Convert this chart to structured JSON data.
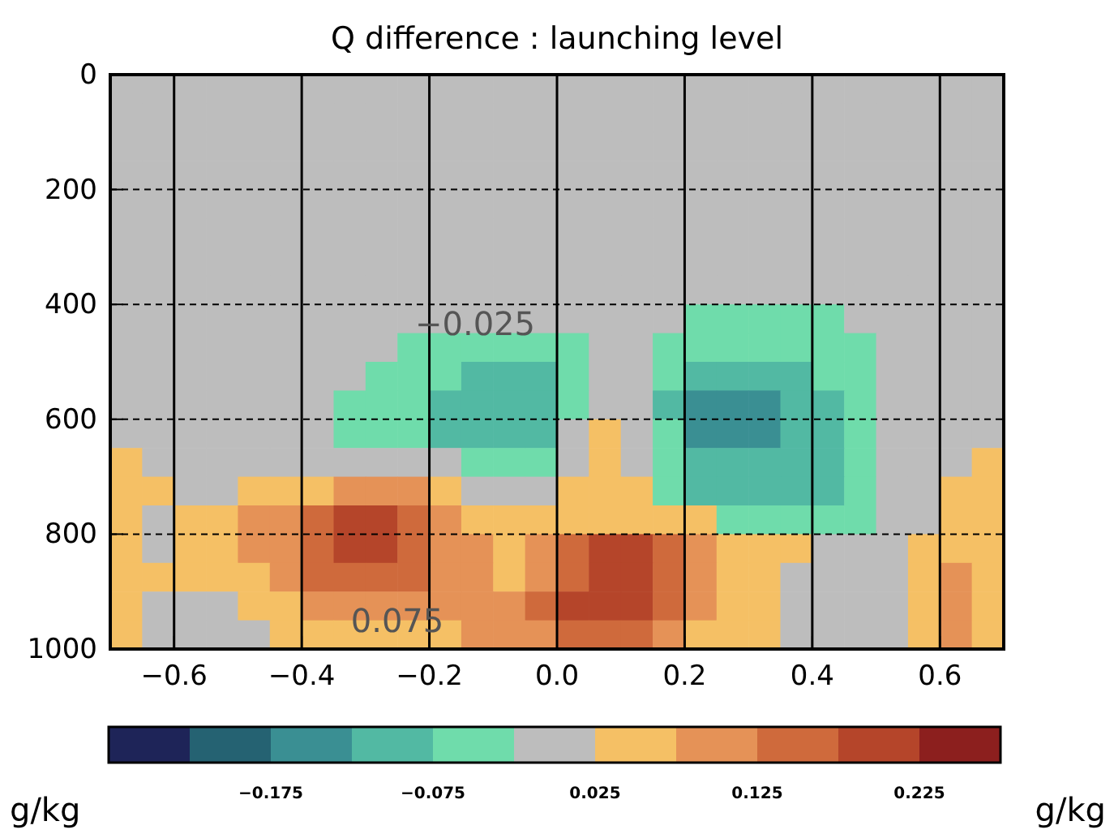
{
  "chart_data": {
    "type": "heatmap",
    "title": "Q difference : launching level",
    "clabel": "g/kg",
    "x": [
      -0.675,
      -0.625,
      -0.575,
      -0.525,
      -0.475,
      -0.425,
      -0.375,
      -0.325,
      -0.275,
      -0.225,
      -0.175,
      -0.125,
      -0.075,
      -0.025,
      0.025,
      0.075,
      0.125,
      0.175,
      0.225,
      0.275,
      0.325,
      0.375,
      0.425,
      0.475,
      0.525,
      0.575,
      0.625,
      0.675
    ],
    "y": [
      25,
      75,
      125,
      175,
      225,
      275,
      325,
      375,
      425,
      475,
      525,
      575,
      625,
      675,
      725,
      775,
      825,
      875,
      925,
      975
    ],
    "xlim": [
      -0.7,
      0.7
    ],
    "xticks": [
      {
        "value": -0.6,
        "label": "−0.6"
      },
      {
        "value": -0.4,
        "label": "−0.4"
      },
      {
        "value": -0.2,
        "label": "−0.2"
      },
      {
        "value": 0,
        "label": "0.0"
      },
      {
        "value": 0.2,
        "label": "0.2"
      },
      {
        "value": 0.4,
        "label": "0.4"
      },
      {
        "value": 0.6,
        "label": "0.6"
      }
    ],
    "ylim": [
      1000,
      0
    ],
    "yticks": [
      0,
      200,
      400,
      600,
      800,
      1000
    ],
    "grid": true,
    "clim": [
      -0.275,
      0.275
    ],
    "cticks": [
      {
        "value": -0.175,
        "label": "−0.175"
      },
      {
        "value": -0.075,
        "label": "−0.075"
      },
      0.025,
      0.125,
      0.225
    ],
    "colors": [
      "#1e2458",
      "#256272",
      "#3a8f93",
      "#52b9a3",
      "#6fdcab",
      "#bdbdbd",
      "#f5c065",
      "#e59257",
      "#cf6a3c",
      "#b5452a",
      "#8c1f1e"
    ],
    "cells": [
      [
        0,
        0,
        0,
        0,
        0,
        0,
        0,
        0,
        0,
        0,
        0,
        0,
        0,
        0,
        0,
        0,
        0,
        0,
        0,
        0,
        0,
        0,
        0,
        0,
        0,
        0,
        0,
        0
      ],
      [
        0,
        0,
        0,
        0,
        0,
        0,
        0,
        0,
        0,
        0,
        0,
        0,
        0,
        0,
        0,
        0,
        0,
        0,
        0,
        0,
        0,
        0,
        0,
        0,
        0,
        0,
        0,
        0
      ],
      [
        0,
        0,
        0,
        0,
        0,
        0,
        0,
        0,
        0,
        0,
        0,
        0,
        0,
        0,
        0,
        0,
        0,
        0,
        0,
        0,
        0,
        0,
        0,
        0,
        0,
        0,
        0,
        0
      ],
      [
        0,
        0,
        0,
        0,
        0,
        0,
        0,
        0,
        0,
        0,
        0,
        0,
        0,
        0,
        0,
        0,
        0,
        0,
        0,
        0,
        0,
        0,
        0,
        0,
        0,
        0,
        0,
        0
      ],
      [
        0,
        0,
        0,
        0,
        0,
        0,
        0,
        0,
        0,
        0,
        0,
        0,
        0,
        0,
        0,
        0,
        0,
        0,
        0,
        0,
        0,
        0,
        0,
        0,
        0,
        0,
        0,
        0
      ],
      [
        0,
        0,
        0,
        0,
        0,
        0,
        0,
        0,
        0,
        0,
        0,
        0,
        0,
        0,
        0,
        0,
        0,
        0,
        0,
        0,
        0,
        0,
        0,
        0,
        0,
        0,
        0,
        0
      ],
      [
        0,
        0,
        0,
        0,
        0,
        0,
        0,
        0,
        0,
        0,
        0,
        0,
        0,
        0,
        0,
        0,
        0,
        0,
        0,
        0,
        0,
        0,
        0,
        0,
        0,
        0,
        0,
        0
      ],
      [
        0,
        0,
        0,
        0,
        0,
        0,
        0,
        0,
        0,
        0,
        0,
        0,
        0,
        0,
        0,
        0,
        0,
        0,
        0,
        0,
        0,
        0,
        0,
        0,
        0,
        0,
        0,
        0
      ],
      [
        0,
        0,
        0,
        0,
        0,
        0,
        0,
        0,
        0,
        0,
        0,
        0,
        0,
        0,
        0,
        0,
        0,
        0,
        -0.05,
        -0.05,
        -0.05,
        -0.05,
        -0.05,
        0,
        0,
        0,
        0,
        0
      ],
      [
        0,
        0,
        0,
        0,
        0,
        0,
        0,
        0,
        0,
        -0.05,
        -0.05,
        -0.05,
        -0.05,
        -0.05,
        -0.05,
        0,
        0,
        -0.05,
        -0.05,
        -0.05,
        -0.05,
        -0.05,
        -0.05,
        -0.05,
        0,
        0,
        0,
        0
      ],
      [
        0,
        0,
        0,
        0,
        0,
        0,
        0,
        0,
        -0.05,
        -0.05,
        -0.05,
        -0.1,
        -0.1,
        -0.1,
        -0.05,
        0,
        0,
        -0.05,
        -0.1,
        -0.1,
        -0.1,
        -0.1,
        -0.05,
        -0.05,
        0,
        0,
        0,
        0
      ],
      [
        0,
        0,
        0,
        0,
        0,
        0,
        0,
        -0.05,
        -0.05,
        -0.05,
        -0.1,
        -0.1,
        -0.1,
        -0.1,
        -0.05,
        0,
        0,
        -0.1,
        -0.15,
        -0.15,
        -0.15,
        -0.1,
        -0.1,
        -0.05,
        0,
        0,
        0,
        0
      ],
      [
        0,
        0,
        0,
        0,
        0,
        0,
        0,
        -0.05,
        -0.05,
        -0.05,
        -0.1,
        -0.1,
        -0.1,
        -0.1,
        0,
        0.05,
        0,
        -0.05,
        -0.15,
        -0.15,
        -0.15,
        -0.1,
        -0.1,
        -0.05,
        0,
        0,
        0,
        0
      ],
      [
        0.05,
        0,
        0,
        0,
        0,
        0,
        0,
        0,
        0,
        0,
        0,
        -0.05,
        -0.05,
        -0.05,
        0,
        0.05,
        0,
        -0.05,
        -0.1,
        -0.1,
        -0.1,
        -0.1,
        -0.1,
        -0.05,
        0,
        0,
        0,
        0.05
      ],
      [
        0.05,
        0.05,
        0,
        0,
        0.05,
        0.05,
        0.05,
        0.1,
        0.1,
        0.1,
        0.05,
        0,
        0,
        0,
        0.05,
        0.05,
        0.05,
        -0.05,
        -0.1,
        -0.1,
        -0.1,
        -0.1,
        -0.1,
        -0.05,
        0,
        0,
        0.05,
        0.05
      ],
      [
        0.05,
        0,
        0.05,
        0.05,
        0.1,
        0.1,
        0.15,
        0.2,
        0.2,
        0.15,
        0.1,
        0.05,
        0.05,
        0.05,
        0.05,
        0.05,
        0.05,
        0.05,
        0.05,
        -0.05,
        -0.05,
        -0.05,
        -0.05,
        -0.05,
        0,
        0,
        0.05,
        0.05
      ],
      [
        0.05,
        0,
        0.05,
        0.05,
        0.1,
        0.1,
        0.15,
        0.2,
        0.2,
        0.15,
        0.1,
        0.1,
        0.05,
        0.1,
        0.15,
        0.2,
        0.2,
        0.15,
        0.1,
        0.05,
        0.05,
        0.05,
        0,
        0,
        0,
        0.05,
        0.05,
        0.05
      ],
      [
        0.05,
        0.05,
        0.05,
        0.05,
        0.05,
        0.1,
        0.15,
        0.15,
        0.15,
        0.15,
        0.1,
        0.1,
        0.05,
        0.1,
        0.15,
        0.2,
        0.2,
        0.15,
        0.1,
        0.05,
        0.05,
        0,
        0,
        0,
        0,
        0.05,
        0.1,
        0.05
      ],
      [
        0.05,
        0,
        0,
        0,
        0.05,
        0.05,
        0.1,
        0.1,
        0.1,
        0.1,
        0.1,
        0.1,
        0.1,
        0.15,
        0.2,
        0.2,
        0.2,
        0.15,
        0.1,
        0.05,
        0.05,
        0,
        0,
        0,
        0,
        0.05,
        0.1,
        0.05
      ],
      [
        0.05,
        0,
        0,
        0,
        0,
        0.05,
        0.05,
        0.05,
        0.05,
        0.05,
        0.05,
        0.1,
        0.1,
        0.1,
        0.15,
        0.15,
        0.15,
        0.1,
        0.05,
        0.05,
        0.05,
        0,
        0,
        0,
        0,
        0.05,
        0.1,
        0.05
      ]
    ],
    "annotations": [
      "−0.025",
      "0.075",
      "g/kg"
    ]
  }
}
